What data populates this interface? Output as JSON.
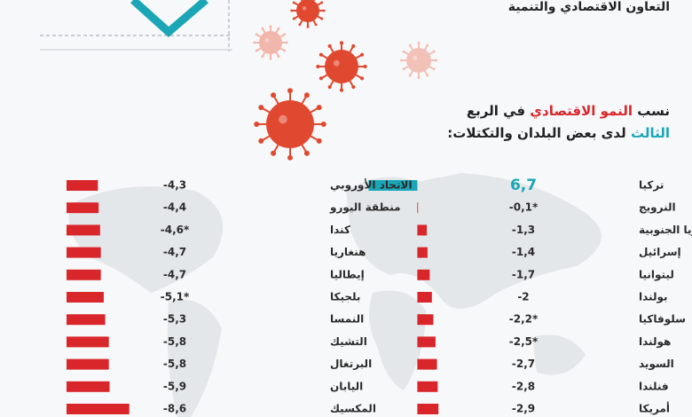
{
  "header": {
    "subtitle": "التعاون الاقتصادي والتنمية",
    "title": {
      "line1": [
        "نسب ",
        "النمو الاقتصادي",
        " في الربع"
      ],
      "line2": [
        "الثالث",
        " لدى بعض البلدان والتكتلات:"
      ]
    }
  },
  "chart_data": [
    {
      "type": "hbar",
      "categories": [
        "تركيا",
        "النرويج",
        "كوريا الجنوبية",
        "إسرائيل",
        "ليتوانيا",
        "بولندا",
        "سلوفاكيا",
        "هولندا",
        "السويد",
        "فنلندا",
        "أمريكا"
      ],
      "values": [
        6.7,
        -0.1,
        -1.3,
        -1.4,
        -1.7,
        -2,
        -2.2,
        -2.5,
        -2.7,
        -2.8,
        -2.9
      ],
      "value_labels": [
        "6,7",
        "-0,1*",
        "-1,3",
        "-1,4",
        "-1,7",
        "-2",
        "-2,2*",
        "-2,5*",
        "-2,7",
        "-2,8",
        "-2,9"
      ],
      "colors": [
        "#1aa6b7",
        "#d9262b",
        "#d9262b",
        "#d9262b",
        "#d9262b",
        "#d9262b",
        "#d9262b",
        "#d9262b",
        "#d9262b",
        "#d9262b",
        "#d9262b"
      ],
      "xlim": [
        7,
        -3
      ]
    },
    {
      "type": "hbar",
      "categories": [
        "الاتحاد الأوروبي",
        "منطقة اليورو",
        "كندا",
        "هنغاريا",
        "إيطاليا",
        "بلجيكا",
        "النمسا",
        "التشيك",
        "البرتغال",
        "اليابان",
        "المكسيك"
      ],
      "values": [
        -4.3,
        -4.4,
        -4.6,
        -4.7,
        -4.7,
        -5.1,
        -5.3,
        -5.8,
        -5.8,
        -5.9,
        -8.6
      ],
      "value_labels": [
        "-4,3",
        "-4,4",
        "-4,6*",
        "-4,7",
        "-4,7",
        "-5,1*",
        "-5,3",
        "-5,8",
        "-5,8",
        "-5,9",
        "-8,6"
      ],
      "colors": [
        "#d9262b",
        "#d9262b",
        "#d9262b",
        "#d9262b",
        "#d9262b",
        "#d9262b",
        "#d9262b",
        "#d9262b",
        "#d9262b",
        "#d9262b",
        "#d9262b"
      ],
      "xlim": [
        0,
        -9
      ]
    }
  ]
}
